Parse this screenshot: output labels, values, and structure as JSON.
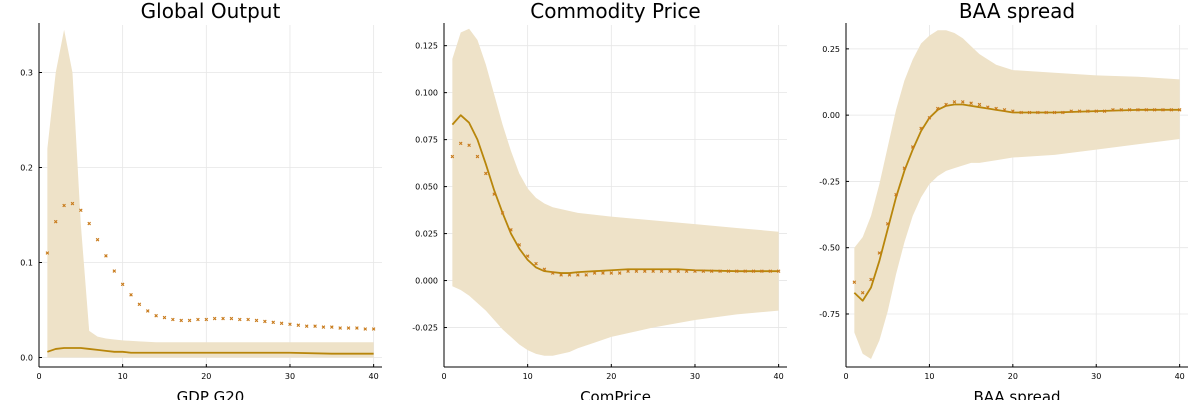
{
  "chart_data": [
    {
      "type": "line",
      "title": "Global Output",
      "xlabel": "GDP G20",
      "ylabel": "",
      "xlim": [
        0,
        41
      ],
      "ylim": [
        -0.01,
        0.35
      ],
      "xticks": [
        0,
        10,
        20,
        30,
        40
      ],
      "xtick_labels": [
        "0",
        "10",
        "20",
        "30",
        "40"
      ],
      "yticks": [
        0.0,
        0.1,
        0.2,
        0.3
      ],
      "ytick_labels": [
        "0.0",
        "0.1",
        "0.2",
        "0.3"
      ],
      "grid": true,
      "series": [
        {
          "name": "band",
          "kind": "band",
          "x": [
            1,
            2,
            3,
            4,
            5,
            6,
            7,
            8,
            9,
            10,
            12,
            14,
            16,
            20,
            25,
            30,
            35,
            40
          ],
          "lower": [
            0.0,
            0.0,
            0.0,
            0.0,
            0.0,
            0.0,
            0.0,
            0.0,
            0.0,
            0.0,
            0.0,
            0.0,
            0.0,
            0.0,
            0.0,
            0.0,
            0.0,
            0.0
          ],
          "upper": [
            0.22,
            0.3,
            0.345,
            0.3,
            0.14,
            0.028,
            0.022,
            0.02,
            0.019,
            0.018,
            0.017,
            0.016,
            0.016,
            0.016,
            0.016,
            0.016,
            0.016,
            0.016
          ]
        },
        {
          "name": "median",
          "kind": "line",
          "x": [
            1,
            2,
            3,
            4,
            5,
            6,
            7,
            8,
            9,
            10,
            11,
            12,
            14,
            16,
            20,
            25,
            30,
            35,
            40
          ],
          "y": [
            0.006,
            0.009,
            0.01,
            0.01,
            0.01,
            0.009,
            0.008,
            0.007,
            0.006,
            0.006,
            0.005,
            0.005,
            0.005,
            0.005,
            0.005,
            0.005,
            0.005,
            0.004,
            0.004
          ]
        },
        {
          "name": "point estimate",
          "kind": "scatter",
          "x": [
            1,
            2,
            3,
            4,
            5,
            6,
            7,
            8,
            9,
            10,
            11,
            12,
            13,
            14,
            15,
            16,
            17,
            18,
            19,
            20,
            21,
            22,
            23,
            24,
            25,
            26,
            27,
            28,
            29,
            30,
            31,
            32,
            33,
            34,
            35,
            36,
            37,
            38,
            39,
            40
          ],
          "y": [
            0.11,
            0.143,
            0.16,
            0.162,
            0.155,
            0.141,
            0.124,
            0.107,
            0.091,
            0.077,
            0.066,
            0.056,
            0.049,
            0.044,
            0.042,
            0.04,
            0.039,
            0.039,
            0.04,
            0.04,
            0.041,
            0.041,
            0.041,
            0.04,
            0.04,
            0.039,
            0.038,
            0.037,
            0.036,
            0.035,
            0.034,
            0.033,
            0.033,
            0.032,
            0.032,
            0.031,
            0.031,
            0.031,
            0.03,
            0.03
          ]
        }
      ]
    },
    {
      "type": "line",
      "title": "Commodity Price",
      "xlabel": "ComPrice",
      "ylabel": "",
      "xlim": [
        0,
        41
      ],
      "ylim": [
        -0.046,
        0.136
      ],
      "xticks": [
        0,
        10,
        20,
        30,
        40
      ],
      "xtick_labels": [
        "0",
        "10",
        "20",
        "30",
        "40"
      ],
      "yticks": [
        -0.025,
        0.0,
        0.025,
        0.05,
        0.075,
        0.1,
        0.125
      ],
      "ytick_labels": [
        "-0.025",
        "0.000",
        "0.025",
        "0.050",
        "0.075",
        "0.100",
        "0.125"
      ],
      "grid": true,
      "series": [
        {
          "name": "band",
          "kind": "band",
          "x": [
            1,
            2,
            3,
            4,
            5,
            6,
            7,
            8,
            9,
            10,
            11,
            12,
            13,
            14,
            15,
            16,
            18,
            20,
            25,
            30,
            35,
            40
          ],
          "lower": [
            -0.003,
            -0.005,
            -0.008,
            -0.012,
            -0.016,
            -0.021,
            -0.026,
            -0.03,
            -0.034,
            -0.037,
            -0.039,
            -0.04,
            -0.04,
            -0.039,
            -0.038,
            -0.036,
            -0.033,
            -0.03,
            -0.025,
            -0.021,
            -0.018,
            -0.016
          ],
          "upper": [
            0.118,
            0.132,
            0.134,
            0.128,
            0.115,
            0.099,
            0.083,
            0.069,
            0.057,
            0.049,
            0.044,
            0.041,
            0.039,
            0.038,
            0.037,
            0.036,
            0.035,
            0.034,
            0.032,
            0.03,
            0.028,
            0.026
          ]
        },
        {
          "name": "median",
          "kind": "line",
          "x": [
            1,
            2,
            3,
            4,
            5,
            6,
            7,
            8,
            9,
            10,
            11,
            12,
            13,
            14,
            15,
            16,
            18,
            20,
            22,
            25,
            28,
            30,
            35,
            40
          ],
          "y": [
            0.083,
            0.088,
            0.084,
            0.075,
            0.062,
            0.048,
            0.036,
            0.025,
            0.017,
            0.011,
            0.007,
            0.005,
            0.0045,
            0.004,
            0.004,
            0.0045,
            0.005,
            0.0055,
            0.006,
            0.006,
            0.006,
            0.0055,
            0.005,
            0.005
          ]
        },
        {
          "name": "point estimate",
          "kind": "scatter",
          "x": [
            1,
            2,
            3,
            4,
            5,
            6,
            7,
            8,
            9,
            10,
            11,
            12,
            13,
            14,
            15,
            16,
            17,
            18,
            19,
            20,
            21,
            22,
            23,
            24,
            25,
            26,
            27,
            28,
            29,
            30,
            31,
            32,
            33,
            34,
            35,
            36,
            37,
            38,
            39,
            40
          ],
          "y": [
            0.066,
            0.073,
            0.072,
            0.066,
            0.057,
            0.046,
            0.036,
            0.027,
            0.019,
            0.013,
            0.009,
            0.006,
            0.004,
            0.003,
            0.003,
            0.003,
            0.003,
            0.004,
            0.004,
            0.004,
            0.004,
            0.005,
            0.005,
            0.005,
            0.005,
            0.005,
            0.005,
            0.005,
            0.005,
            0.005,
            0.005,
            0.005,
            0.005,
            0.005,
            0.005,
            0.005,
            0.005,
            0.005,
            0.005,
            0.005
          ]
        }
      ]
    },
    {
      "type": "line",
      "title": "BAA spread",
      "xlabel": "BAA spread",
      "ylabel": "",
      "xlim": [
        0,
        41
      ],
      "ylim": [
        -0.95,
        0.34
      ],
      "xticks": [
        0,
        10,
        20,
        30,
        40
      ],
      "xtick_labels": [
        "0",
        "10",
        "20",
        "30",
        "40"
      ],
      "yticks": [
        -0.75,
        -0.5,
        -0.25,
        0.0,
        0.25
      ],
      "ytick_labels": [
        "-0.75",
        "-0.50",
        "-0.25",
        "0.00",
        "0.25"
      ],
      "grid": true,
      "series": [
        {
          "name": "band",
          "kind": "band",
          "x": [
            1,
            2,
            3,
            4,
            5,
            6,
            7,
            8,
            9,
            10,
            11,
            12,
            13,
            14,
            15,
            16,
            18,
            20,
            25,
            30,
            35,
            40
          ],
          "lower": [
            -0.82,
            -0.9,
            -0.92,
            -0.85,
            -0.74,
            -0.6,
            -0.48,
            -0.38,
            -0.31,
            -0.26,
            -0.23,
            -0.21,
            -0.2,
            -0.19,
            -0.18,
            -0.18,
            -0.17,
            -0.16,
            -0.15,
            -0.13,
            -0.11,
            -0.09
          ],
          "upper": [
            -0.5,
            -0.46,
            -0.38,
            -0.26,
            -0.12,
            0.02,
            0.13,
            0.21,
            0.27,
            0.3,
            0.32,
            0.32,
            0.31,
            0.29,
            0.26,
            0.23,
            0.19,
            0.17,
            0.16,
            0.15,
            0.145,
            0.135
          ]
        },
        {
          "name": "median",
          "kind": "line",
          "x": [
            1,
            2,
            3,
            4,
            5,
            6,
            7,
            8,
            9,
            10,
            11,
            12,
            13,
            14,
            15,
            16,
            17,
            18,
            19,
            20,
            22,
            25,
            30,
            35,
            40
          ],
          "y": [
            -0.67,
            -0.7,
            -0.65,
            -0.55,
            -0.43,
            -0.31,
            -0.21,
            -0.13,
            -0.06,
            -0.01,
            0.02,
            0.035,
            0.04,
            0.04,
            0.035,
            0.03,
            0.025,
            0.02,
            0.015,
            0.01,
            0.01,
            0.01,
            0.015,
            0.02,
            0.02
          ]
        },
        {
          "name": "point estimate",
          "kind": "scatter",
          "x": [
            1,
            2,
            3,
            4,
            5,
            6,
            7,
            8,
            9,
            10,
            11,
            12,
            13,
            14,
            15,
            16,
            17,
            18,
            19,
            20,
            21,
            22,
            23,
            24,
            25,
            26,
            27,
            28,
            29,
            30,
            31,
            32,
            33,
            34,
            35,
            36,
            37,
            38,
            39,
            40
          ],
          "y": [
            -0.63,
            -0.67,
            -0.62,
            -0.52,
            -0.41,
            -0.3,
            -0.2,
            -0.12,
            -0.05,
            -0.01,
            0.025,
            0.04,
            0.05,
            0.05,
            0.045,
            0.04,
            0.03,
            0.025,
            0.02,
            0.015,
            0.01,
            0.01,
            0.01,
            0.01,
            0.01,
            0.01,
            0.015,
            0.015,
            0.015,
            0.015,
            0.015,
            0.02,
            0.02,
            0.02,
            0.02,
            0.02,
            0.02,
            0.02,
            0.02,
            0.02
          ]
        }
      ]
    }
  ],
  "colors": {
    "line": "#b8860b",
    "band": "#eee2c8",
    "marker": "#c87a1a",
    "grid": "#e6e6e6",
    "axis": "#000000"
  }
}
